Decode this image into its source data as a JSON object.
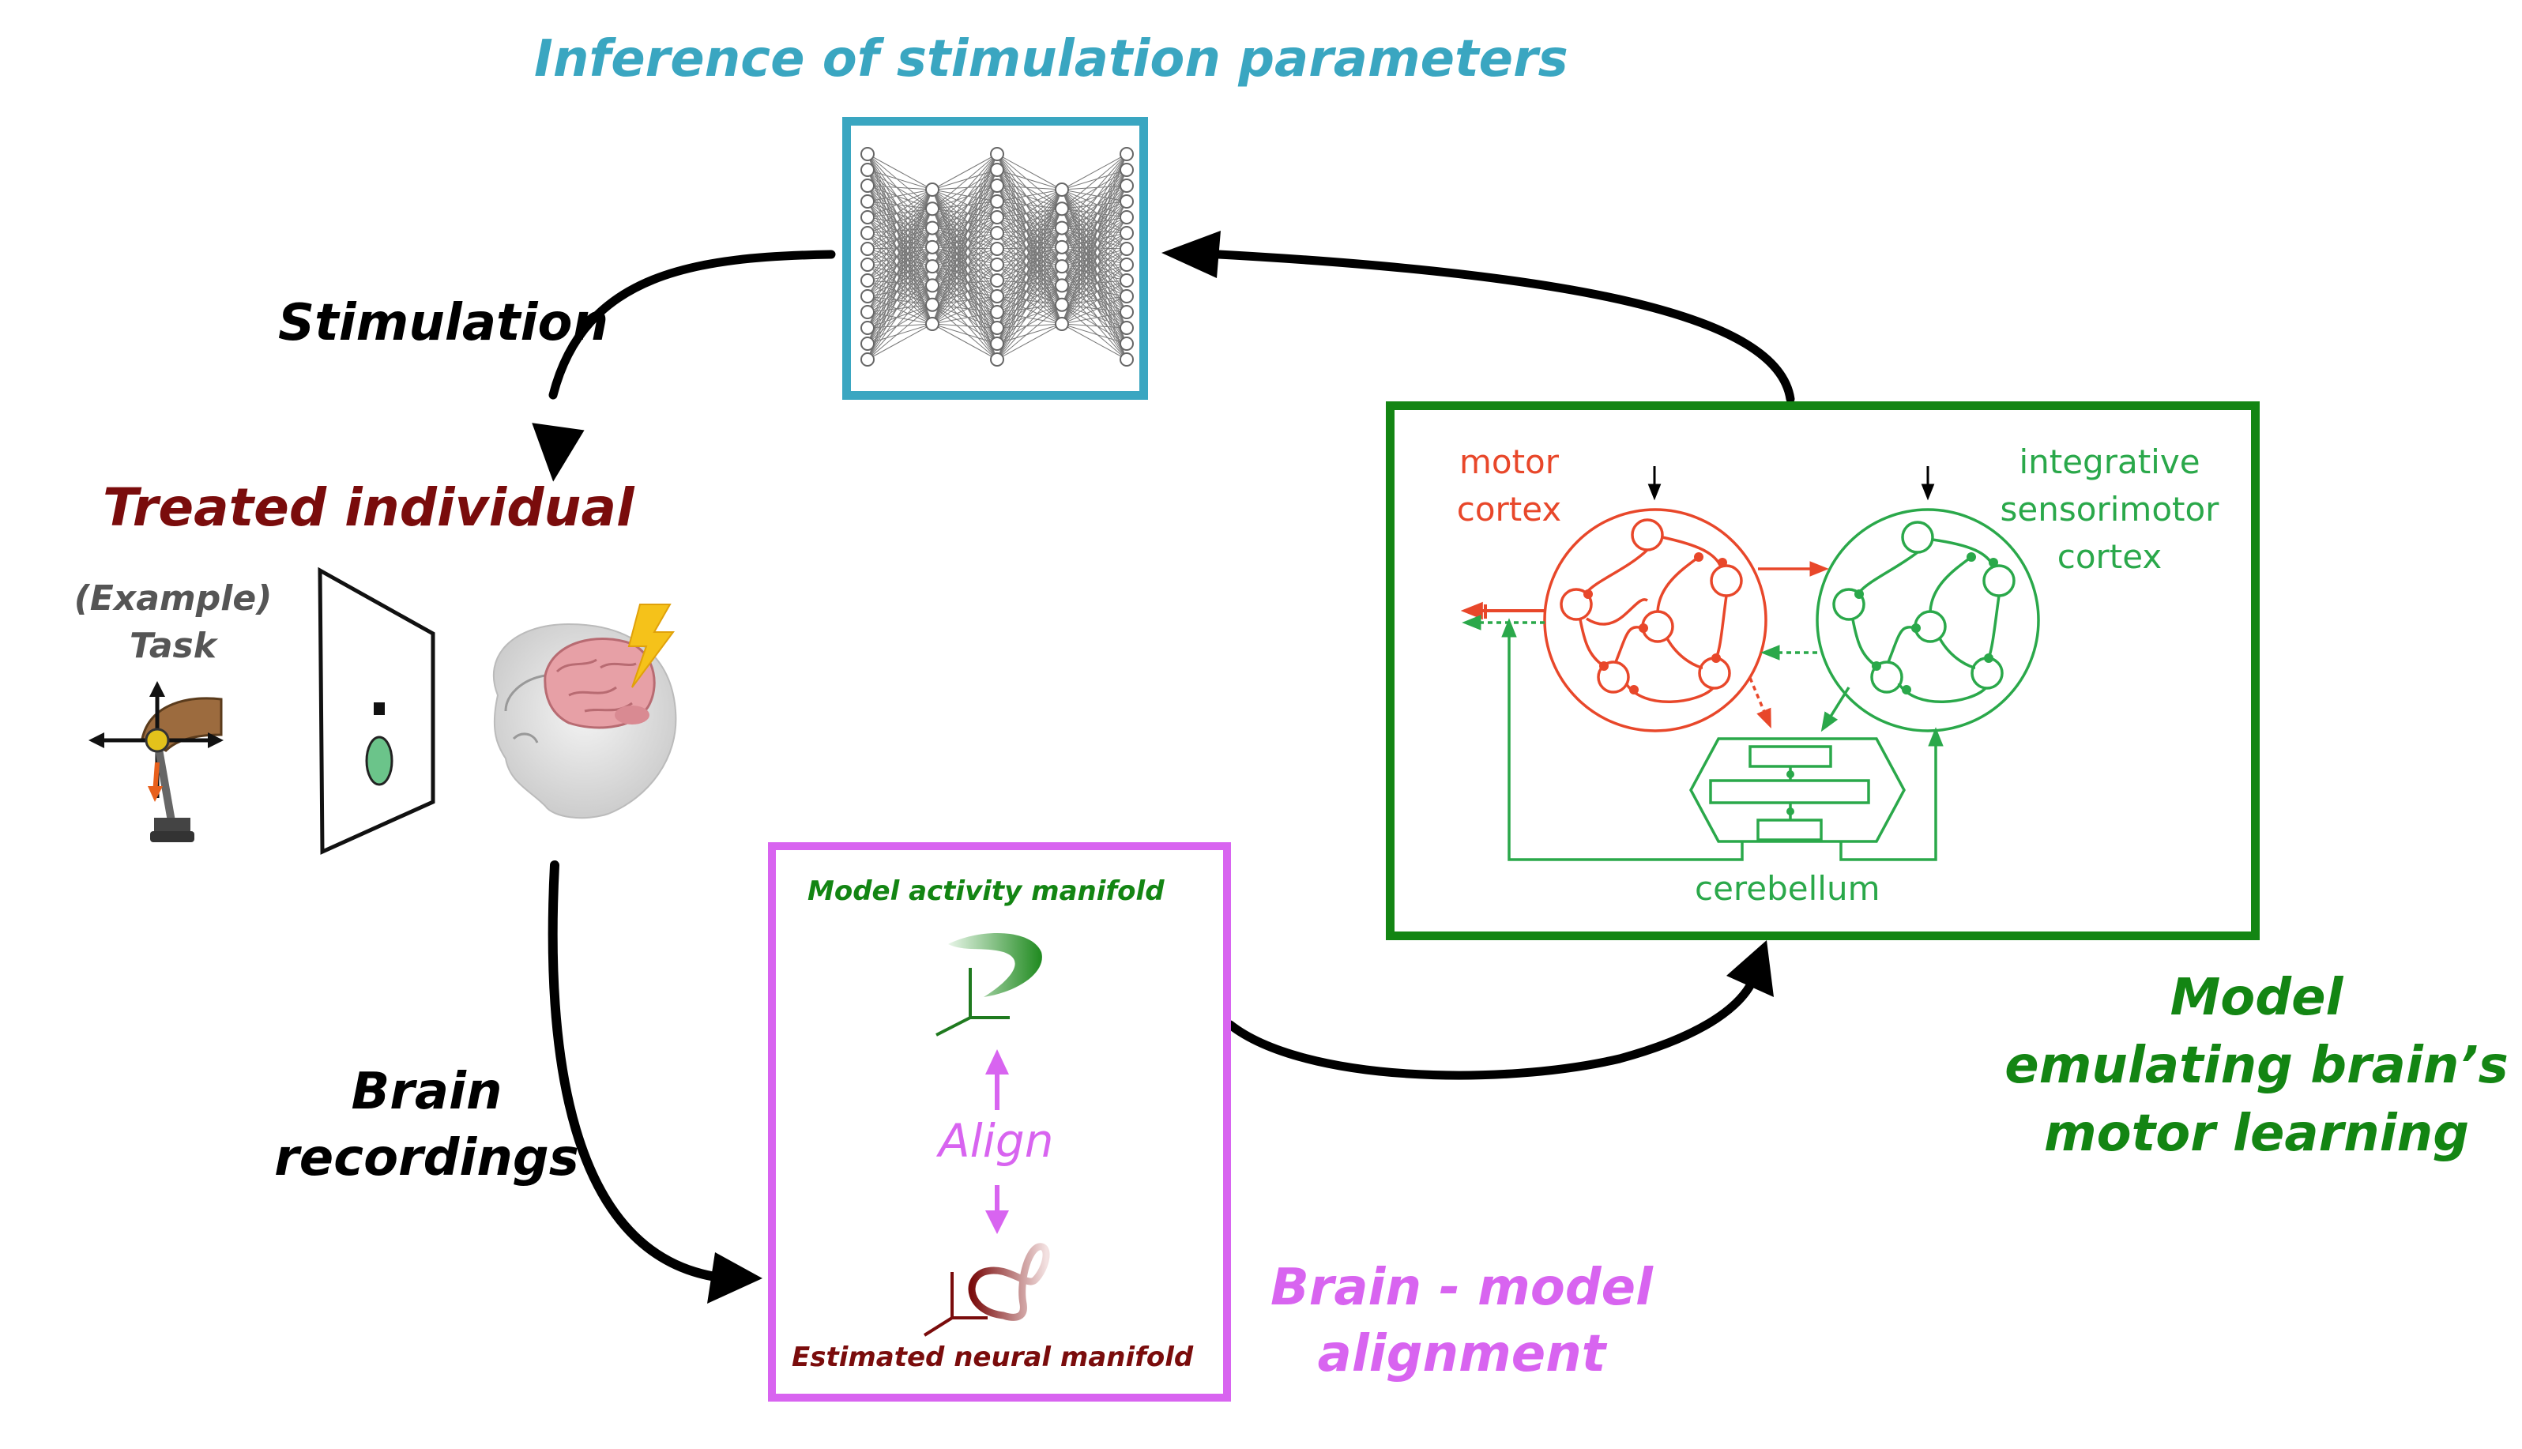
{
  "labels": {
    "inference_title": "Inference of stimulation parameters",
    "stimulation": "Stimulation",
    "treated_individual": "Treated individual",
    "example_task_line1": "(Example)",
    "example_task_line2": "Task",
    "brain_recordings_line1": "Brain",
    "brain_recordings_line2": "recordings",
    "model_activity_manifold": "Model activity manifold",
    "align": "Align",
    "estimated_neural_manifold": "Estimated neural manifold",
    "brain_model_alignment_line1": "Brain - model",
    "brain_model_alignment_line2": "alignment",
    "model_line1": "Model",
    "model_line2": "emulating brain’s",
    "model_line3": "motor learning"
  },
  "model_box": {
    "motor_cortex_line1": "motor",
    "motor_cortex_line2": "cortex",
    "integrative_line1": "integrative",
    "integrative_line2": "sensorimotor",
    "integrative_line3": "cortex",
    "cerebellum": "cerebellum"
  },
  "colors": {
    "inference": "#3aa6c1",
    "treated": "#7a0c0c",
    "alignment": "#d864f0",
    "model_green": "#138513",
    "motor_red": "#e8472a",
    "sensorimotor_green": "#2aa84a",
    "arrow": "#000000"
  },
  "icons": {
    "network": "neural-network-icon",
    "joystick": "joystick-task-icon",
    "screen": "screen-target-icon",
    "monkey": "monkey-brain-icon",
    "lightning": "lightning-icon"
  }
}
